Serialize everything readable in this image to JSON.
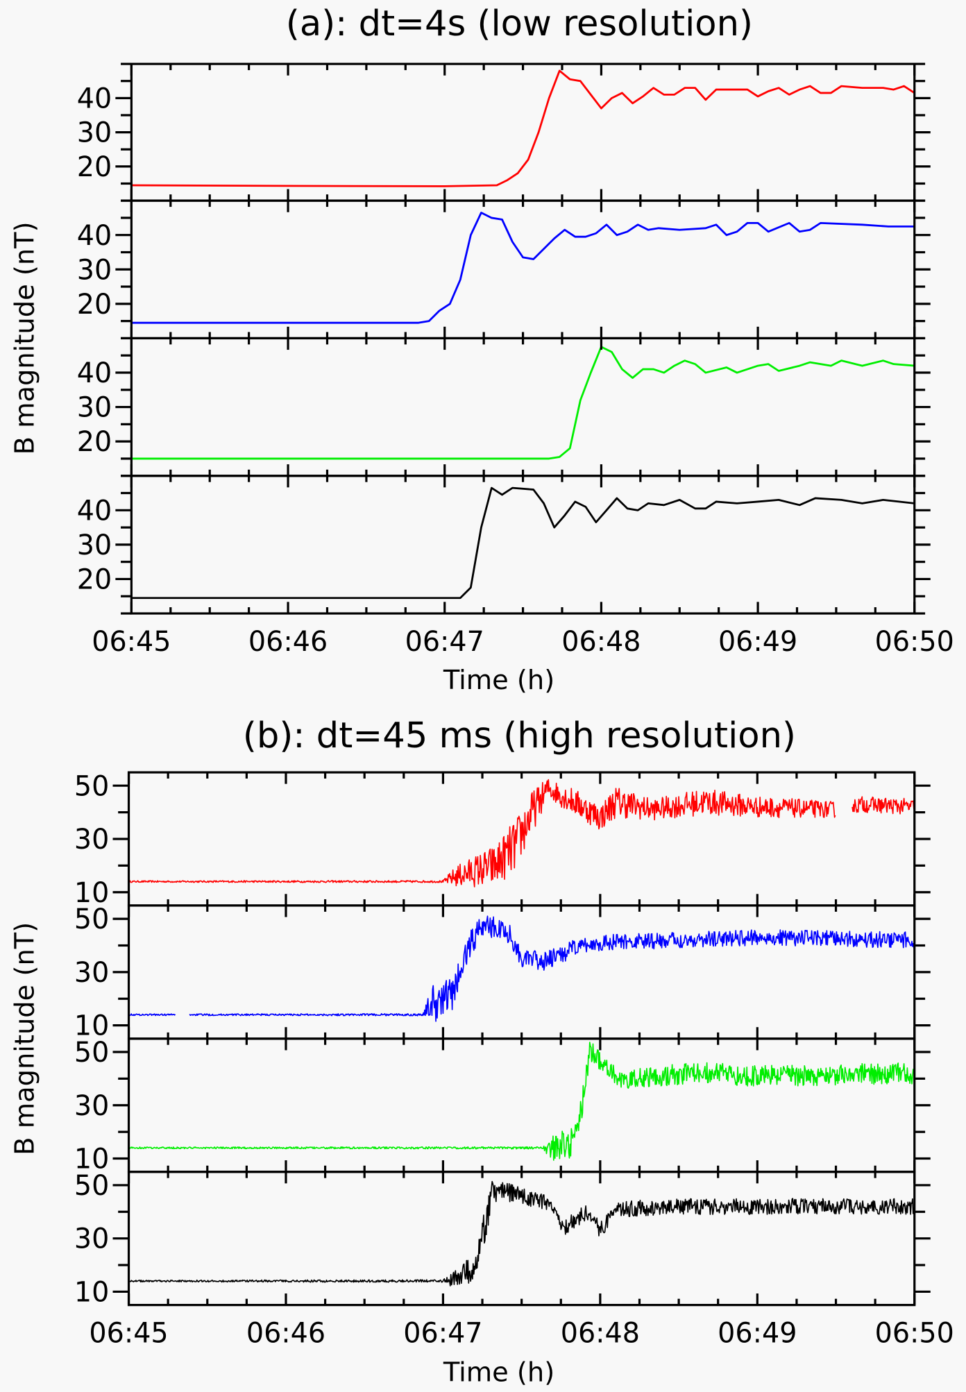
{
  "chart_data": [
    {
      "type": "line",
      "title": "(a): dt=4s (low resolution)",
      "xlabel": "Time (h)",
      "ylabel": "B magnitude (nT)",
      "xlim": [
        "06:45:00",
        "06:50:00"
      ],
      "xticks": [
        "06:45",
        "06:46",
        "06:47",
        "06:48",
        "06:49",
        "06:50"
      ],
      "ylim": [
        10,
        50
      ],
      "yticks": [
        "20",
        "30",
        "40"
      ],
      "grid": false,
      "stacked_panels": 4,
      "series": [
        {
          "color": "#ff0000",
          "points": [
            [
              "06:45:00",
              14.5
            ],
            [
              "06:46:00",
              14.3
            ],
            [
              "06:47:00",
              14.2
            ],
            [
              "06:47:20",
              14.5
            ],
            [
              "06:47:24",
              16
            ],
            [
              "06:47:28",
              18
            ],
            [
              "06:47:32",
              22
            ],
            [
              "06:47:36",
              30
            ],
            [
              "06:47:40",
              40
            ],
            [
              "06:47:44",
              48
            ],
            [
              "06:47:48",
              45.5
            ],
            [
              "06:47:52",
              45
            ],
            [
              "06:47:56",
              41
            ],
            [
              "06:48:00",
              37
            ],
            [
              "06:48:04",
              40
            ],
            [
              "06:48:08",
              41.5
            ],
            [
              "06:48:12",
              38.5
            ],
            [
              "06:48:16",
              40.5
            ],
            [
              "06:48:20",
              43
            ],
            [
              "06:48:24",
              41
            ],
            [
              "06:48:28",
              41
            ],
            [
              "06:48:32",
              43
            ],
            [
              "06:48:36",
              43
            ],
            [
              "06:48:40",
              39.5
            ],
            [
              "06:48:44",
              42.5
            ],
            [
              "06:48:56",
              42.5
            ],
            [
              "06:49:00",
              40.5
            ],
            [
              "06:49:04",
              42
            ],
            [
              "06:49:08",
              43
            ],
            [
              "06:49:12",
              41
            ],
            [
              "06:49:16",
              42.5
            ],
            [
              "06:49:20",
              43.5
            ],
            [
              "06:49:24",
              41.5
            ],
            [
              "06:49:28",
              41.5
            ],
            [
              "06:49:32",
              43.5
            ],
            [
              "06:49:40",
              43
            ],
            [
              "06:49:48",
              43
            ],
            [
              "06:49:52",
              42.5
            ],
            [
              "06:49:56",
              43.5
            ],
            [
              "06:50:00",
              41.5
            ]
          ]
        },
        {
          "color": "#0000ff",
          "points": [
            [
              "06:45:00",
              14.5
            ],
            [
              "06:46:00",
              14.5
            ],
            [
              "06:46:50",
              14.5
            ],
            [
              "06:46:54",
              15
            ],
            [
              "06:46:58",
              18
            ],
            [
              "06:47:02",
              20
            ],
            [
              "06:47:06",
              27
            ],
            [
              "06:47:10",
              40
            ],
            [
              "06:47:14",
              46.5
            ],
            [
              "06:47:18",
              45
            ],
            [
              "06:47:22",
              44.5
            ],
            [
              "06:47:26",
              38
            ],
            [
              "06:47:30",
              33.5
            ],
            [
              "06:47:34",
              33
            ],
            [
              "06:47:38",
              36
            ],
            [
              "06:47:42",
              39
            ],
            [
              "06:47:46",
              41.5
            ],
            [
              "06:47:50",
              39.5
            ],
            [
              "06:47:54",
              39.5
            ],
            [
              "06:47:58",
              40.5
            ],
            [
              "06:48:02",
              43
            ],
            [
              "06:48:06",
              40
            ],
            [
              "06:48:10",
              41
            ],
            [
              "06:48:14",
              43
            ],
            [
              "06:48:18",
              41.5
            ],
            [
              "06:48:22",
              42
            ],
            [
              "06:48:30",
              41.5
            ],
            [
              "06:48:40",
              42
            ],
            [
              "06:48:44",
              43
            ],
            [
              "06:48:48",
              40
            ],
            [
              "06:48:52",
              41
            ],
            [
              "06:48:56",
              43.5
            ],
            [
              "06:49:00",
              43.5
            ],
            [
              "06:49:04",
              41
            ],
            [
              "06:49:12",
              43.5
            ],
            [
              "06:49:16",
              41
            ],
            [
              "06:49:20",
              41.5
            ],
            [
              "06:49:24",
              43.5
            ],
            [
              "06:49:40",
              43
            ],
            [
              "06:49:50",
              42.5
            ],
            [
              "06:50:00",
              42.5
            ]
          ]
        },
        {
          "color": "#00ee00",
          "points": [
            [
              "06:45:00",
              15
            ],
            [
              "06:46:00",
              15
            ],
            [
              "06:47:00",
              15
            ],
            [
              "06:47:40",
              15
            ],
            [
              "06:47:44",
              15.5
            ],
            [
              "06:47:48",
              18
            ],
            [
              "06:47:52",
              32
            ],
            [
              "06:47:56",
              40
            ],
            [
              "06:48:00",
              47.5
            ],
            [
              "06:48:04",
              46
            ],
            [
              "06:48:08",
              41
            ],
            [
              "06:48:12",
              38.5
            ],
            [
              "06:48:16",
              41
            ],
            [
              "06:48:20",
              41
            ],
            [
              "06:48:24",
              40
            ],
            [
              "06:48:28",
              42
            ],
            [
              "06:48:32",
              43.5
            ],
            [
              "06:48:36",
              42.5
            ],
            [
              "06:48:40",
              40
            ],
            [
              "06:48:48",
              41.5
            ],
            [
              "06:48:52",
              40
            ],
            [
              "06:49:00",
              42
            ],
            [
              "06:49:04",
              42.5
            ],
            [
              "06:49:08",
              40.5
            ],
            [
              "06:49:16",
              42
            ],
            [
              "06:49:20",
              43
            ],
            [
              "06:49:28",
              42
            ],
            [
              "06:49:32",
              43.5
            ],
            [
              "06:49:40",
              42
            ],
            [
              "06:49:48",
              43.5
            ],
            [
              "06:49:52",
              42.5
            ],
            [
              "06:50:00",
              42
            ]
          ]
        },
        {
          "color": "#000000",
          "points": [
            [
              "06:45:00",
              14.5
            ],
            [
              "06:46:00",
              14.5
            ],
            [
              "06:47:06",
              14.5
            ],
            [
              "06:47:10",
              17.5
            ],
            [
              "06:47:14",
              35
            ],
            [
              "06:47:18",
              46.5
            ],
            [
              "06:47:22",
              44.5
            ],
            [
              "06:47:26",
              46.5
            ],
            [
              "06:47:34",
              46
            ],
            [
              "06:47:38",
              42
            ],
            [
              "06:47:42",
              35
            ],
            [
              "06:47:46",
              38.5
            ],
            [
              "06:47:50",
              42.5
            ],
            [
              "06:47:54",
              41
            ],
            [
              "06:47:58",
              36.5
            ],
            [
              "06:48:02",
              40
            ],
            [
              "06:48:06",
              43.5
            ],
            [
              "06:48:10",
              40.5
            ],
            [
              "06:48:14",
              40
            ],
            [
              "06:48:18",
              42
            ],
            [
              "06:48:24",
              41.5
            ],
            [
              "06:48:30",
              43
            ],
            [
              "06:48:36",
              40.5
            ],
            [
              "06:48:40",
              40.5
            ],
            [
              "06:48:44",
              42.5
            ],
            [
              "06:48:52",
              42
            ],
            [
              "06:49:00",
              42.5
            ],
            [
              "06:49:08",
              43
            ],
            [
              "06:49:16",
              41.5
            ],
            [
              "06:49:22",
              43.5
            ],
            [
              "06:49:32",
              43
            ],
            [
              "06:49:40",
              42
            ],
            [
              "06:49:48",
              43
            ],
            [
              "06:50:00",
              42
            ]
          ]
        }
      ]
    },
    {
      "type": "line",
      "title": "(b): dt=45 ms (high resolution)",
      "xlabel": "Time (h)",
      "ylabel": "B magnitude (nT)",
      "xlim": [
        "06:45:00",
        "06:50:00"
      ],
      "xticks": [
        "06:45",
        "06:46",
        "06:47",
        "06:48",
        "06:49",
        "06:50"
      ],
      "ylim": [
        5,
        55
      ],
      "yticks": [
        "10",
        "30",
        "50"
      ],
      "grid": false,
      "stacked_panels": 4,
      "point_format": [
        "time",
        "mean",
        "scatter"
      ],
      "series": [
        {
          "color": "#ff0000",
          "gaps": [
            [
              "06:49:30",
              "06:49:36"
            ]
          ],
          "points": [
            [
              "06:45:00",
              14,
              0.3
            ],
            [
              "06:47:00",
              14,
              0.4
            ],
            [
              "06:47:05",
              16,
              4
            ],
            [
              "06:47:20",
              20,
              8
            ],
            [
              "06:47:28",
              28,
              10
            ],
            [
              "06:47:34",
              40,
              8
            ],
            [
              "06:47:40",
              49,
              4
            ],
            [
              "06:47:50",
              44,
              5
            ],
            [
              "06:48:00",
              38,
              5
            ],
            [
              "06:48:06",
              44,
              6
            ],
            [
              "06:48:20",
              41,
              4
            ],
            [
              "06:48:40",
              44,
              5
            ],
            [
              "06:49:00",
              42,
              4
            ],
            [
              "06:49:30",
              41,
              3
            ],
            [
              "06:49:40",
              43,
              3
            ],
            [
              "06:50:00",
              42,
              3
            ]
          ]
        },
        {
          "color": "#0000ff",
          "gaps": [
            [
              "06:45:18",
              "06:45:23"
            ]
          ],
          "points": [
            [
              "06:45:00",
              14,
              0.3
            ],
            [
              "06:46:52",
              14,
              0.4
            ],
            [
              "06:46:56",
              18,
              7
            ],
            [
              "06:47:04",
              22,
              8
            ],
            [
              "06:47:10",
              40,
              7
            ],
            [
              "06:47:15",
              48,
              5
            ],
            [
              "06:47:25",
              45,
              4
            ],
            [
              "06:47:30",
              35,
              3
            ],
            [
              "06:47:40",
              34,
              4
            ],
            [
              "06:47:50",
              39,
              3
            ],
            [
              "06:48:00",
              41,
              3
            ],
            [
              "06:48:30",
              42,
              3
            ],
            [
              "06:49:00",
              43,
              3
            ],
            [
              "06:50:00",
              42,
              3
            ]
          ]
        },
        {
          "color": "#00ee00",
          "gaps": [],
          "points": [
            [
              "06:45:00",
              14,
              0.3
            ],
            [
              "06:47:38",
              14,
              0.4
            ],
            [
              "06:47:42",
              14,
              5
            ],
            [
              "06:47:50",
              16,
              6
            ],
            [
              "06:47:53",
              30,
              5
            ],
            [
              "06:47:56",
              50,
              4
            ],
            [
              "06:48:00",
              47,
              4
            ],
            [
              "06:48:08",
              39,
              3
            ],
            [
              "06:48:20",
              41,
              4
            ],
            [
              "06:48:40",
              42,
              4
            ],
            [
              "06:49:00",
              41,
              4
            ],
            [
              "06:50:00",
              42,
              4
            ]
          ]
        },
        {
          "color": "#000000",
          "gaps": [],
          "points": [
            [
              "06:45:00",
              14,
              0.3
            ],
            [
              "06:47:00",
              14,
              0.5
            ],
            [
              "06:47:05",
              15,
              4
            ],
            [
              "06:47:12",
              20,
              6
            ],
            [
              "06:47:16",
              35,
              6
            ],
            [
              "06:47:19",
              48,
              5
            ],
            [
              "06:47:30",
              46,
              3
            ],
            [
              "06:47:40",
              43,
              3
            ],
            [
              "06:47:46",
              34,
              3
            ],
            [
              "06:47:55",
              40,
              3
            ],
            [
              "06:48:00",
              33,
              3
            ],
            [
              "06:48:06",
              41,
              3
            ],
            [
              "06:48:30",
              42,
              3
            ],
            [
              "06:49:00",
              42,
              3
            ],
            [
              "06:50:00",
              42,
              3
            ]
          ]
        }
      ]
    }
  ]
}
